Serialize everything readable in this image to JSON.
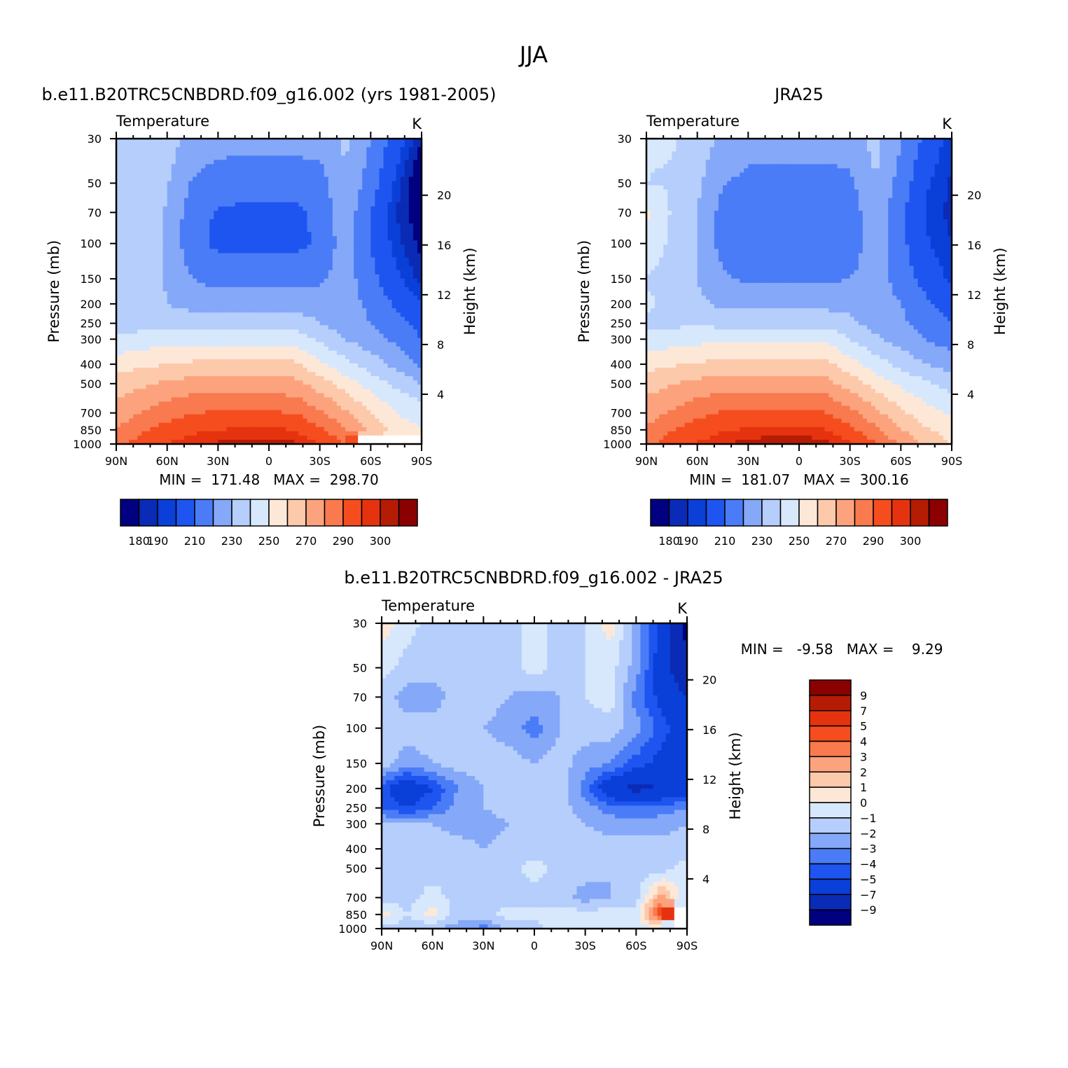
{
  "figure": {
    "title": "JJA",
    "colors": {
      "abs_levels": [
        "#000080",
        "#0a2bb5",
        "#0a3fd8",
        "#1e55f0",
        "#4a7cf7",
        "#85a8f8",
        "#b6cefb",
        "#d7e8fd",
        "#fde8d8",
        "#fdc9ab",
        "#fca37e",
        "#f87a4e",
        "#f54d1e",
        "#e6330f",
        "#b51c04",
        "#8b0000"
      ],
      "diff_levels": [
        "#000080",
        "#0a2bb5",
        "#0a3fd8",
        "#1e55f0",
        "#4a7cf7",
        "#85a8f8",
        "#b6cefb",
        "#d7e8fd",
        "#fde8d8",
        "#fdc9ab",
        "#fca37e",
        "#f87a4e",
        "#f54d1e",
        "#e6330f",
        "#b51c04",
        "#8b0000"
      ],
      "missing": "#ffffff"
    }
  },
  "chart_data": [
    {
      "type": "heatmap",
      "title": "b.e11.B20TRC5CNBDRD.f09_g16.002 (yrs 1981-2005)",
      "subtitle_left": "Temperature",
      "units": "K",
      "ylabel": "Pressure (mb)",
      "ylabel_right": "Height (km)",
      "x_ticks": [
        "90N",
        "60N",
        "30N",
        "0",
        "30S",
        "60S",
        "90S"
      ],
      "y_ticks": [
        30,
        50,
        70,
        100,
        150,
        200,
        250,
        300,
        400,
        500,
        700,
        850,
        1000
      ],
      "y_right_ticks": [
        20,
        16,
        12,
        8,
        4
      ],
      "x_range": [
        90,
        -90
      ],
      "y_range": [
        30,
        1000
      ],
      "y_scale": "log",
      "stats_text": "MIN =  171.48   MAX =  298.70",
      "min": 171.48,
      "max": 298.7,
      "colorbar": {
        "orientation": "horizontal",
        "labels": [
          "180",
          "190",
          "210",
          "230",
          "250",
          "270",
          "290",
          "300"
        ],
        "levels": [
          180,
          185,
          190,
          200,
          210,
          220,
          230,
          240,
          250,
          260,
          270,
          280,
          290,
          295,
          300
        ]
      },
      "field": {
        "lats": [
          90,
          75,
          60,
          45,
          30,
          15,
          0,
          -15,
          -30,
          -45,
          -60,
          -75,
          -90
        ],
        "levels_mb": [
          30,
          50,
          70,
          100,
          150,
          200,
          250,
          300,
          400,
          500,
          700,
          850,
          1000
        ],
        "values": [
          [
            230,
            230,
            225,
            216,
            214,
            214,
            214,
            214,
            214,
            222,
            210,
            195,
            180
          ],
          [
            229,
            228,
            221,
            209,
            205,
            204,
            204,
            204,
            206,
            219,
            205,
            188,
            172
          ],
          [
            228,
            227,
            219,
            204,
            199,
            198,
            198,
            198,
            202,
            217,
            200,
            185,
            175
          ],
          [
            228,
            226,
            218,
            203,
            198,
            198,
            198,
            198,
            201,
            216,
            200,
            187,
            178
          ],
          [
            228,
            226,
            219,
            210,
            206,
            206,
            206,
            206,
            208,
            215,
            203,
            192,
            183
          ],
          [
            227,
            225,
            220,
            216,
            216,
            216,
            216,
            216,
            216,
            214,
            208,
            198,
            190
          ],
          [
            226,
            226,
            226,
            226,
            225,
            225,
            225,
            225,
            220,
            214,
            210,
            204,
            196
          ],
          [
            232,
            234,
            236,
            236,
            236,
            236,
            236,
            236,
            228,
            220,
            214,
            208,
            200
          ],
          [
            245,
            248,
            250,
            252,
            252,
            252,
            252,
            252,
            242,
            233,
            225,
            217,
            208
          ],
          [
            255,
            258,
            262,
            264,
            264,
            264,
            264,
            263,
            255,
            245,
            236,
            228,
            220
          ],
          [
            265,
            270,
            276,
            280,
            281,
            281,
            281,
            280,
            272,
            262,
            250,
            240,
            236
          ],
          [
            270,
            278,
            284,
            288,
            290,
            291,
            291,
            290,
            282,
            270,
            258,
            245,
            240
          ],
          [
            276,
            285,
            290,
            294,
            296,
            297,
            298,
            296,
            290,
            280,
            null,
            null,
            null
          ]
        ]
      }
    },
    {
      "type": "heatmap",
      "title": "JRA25",
      "subtitle_left": "Temperature",
      "units": "K",
      "ylabel": "Pressure (mb)",
      "ylabel_right": "Height (km)",
      "x_ticks": [
        "90N",
        "60N",
        "30N",
        "0",
        "30S",
        "60S",
        "90S"
      ],
      "y_ticks": [
        30,
        50,
        70,
        100,
        150,
        200,
        250,
        300,
        400,
        500,
        700,
        850,
        1000
      ],
      "y_right_ticks": [
        20,
        16,
        12,
        8,
        4
      ],
      "x_range": [
        90,
        -90
      ],
      "y_range": [
        30,
        1000
      ],
      "y_scale": "log",
      "stats_text": "MIN =  181.07   MAX =  300.16",
      "min": 181.07,
      "max": 300.16,
      "colorbar": {
        "orientation": "horizontal",
        "labels": [
          "180",
          "190",
          "210",
          "230",
          "250",
          "270",
          "290",
          "300"
        ],
        "levels": [
          180,
          185,
          190,
          200,
          210,
          220,
          230,
          240,
          250,
          260,
          270,
          280,
          290,
          295,
          300
        ]
      },
      "field": {
        "lats": [
          90,
          75,
          60,
          45,
          30,
          15,
          0,
          -15,
          -30,
          -45,
          -60,
          -75,
          -90
        ],
        "levels_mb": [
          30,
          50,
          70,
          100,
          150,
          200,
          250,
          300,
          400,
          500,
          700,
          850,
          1000
        ],
        "values": [
          [
            231,
            231,
            226,
            217,
            215,
            215,
            215,
            215,
            215,
            223,
            211,
            197,
            186
          ],
          [
            230,
            229,
            222,
            211,
            207,
            206,
            206,
            206,
            208,
            220,
            206,
            191,
            184
          ],
          [
            242,
            229,
            220,
            206,
            202,
            201,
            201,
            201,
            204,
            218,
            202,
            189,
            183
          ],
          [
            236,
            228,
            220,
            206,
            201,
            201,
            201,
            201,
            203,
            217,
            203,
            191,
            185
          ],
          [
            229,
            227,
            220,
            212,
            208,
            208,
            208,
            208,
            210,
            216,
            205,
            196,
            188
          ],
          [
            232,
            227,
            222,
            218,
            217,
            217,
            217,
            217,
            217,
            216,
            210,
            202,
            194
          ],
          [
            228,
            228,
            228,
            227,
            227,
            227,
            227,
            227,
            222,
            216,
            212,
            206,
            200
          ],
          [
            233,
            235,
            237,
            238,
            238,
            238,
            238,
            238,
            230,
            222,
            216,
            210,
            205
          ],
          [
            246,
            249,
            251,
            253,
            253,
            253,
            253,
            253,
            244,
            235,
            227,
            220,
            215
          ],
          [
            256,
            259,
            263,
            265,
            265,
            265,
            265,
            264,
            256,
            246,
            238,
            232,
            226
          ],
          [
            266,
            271,
            277,
            281,
            282,
            282,
            282,
            281,
            273,
            263,
            252,
            244,
            238
          ],
          [
            271,
            279,
            285,
            289,
            291,
            292,
            292,
            291,
            283,
            272,
            261,
            251,
            246
          ],
          [
            277,
            286,
            291,
            295,
            297,
            299,
            299,
            297,
            291,
            281,
            268,
            256,
            250
          ]
        ]
      }
    },
    {
      "type": "heatmap",
      "title": "b.e11.B20TRC5CNBDRD.f09_g16.002 - JRA25",
      "subtitle_left": "Temperature",
      "units": "K",
      "ylabel": "Pressure (mb)",
      "ylabel_right": "Height (km)",
      "x_ticks": [
        "90N",
        "60N",
        "30N",
        "0",
        "30S",
        "60S",
        "90S"
      ],
      "y_ticks": [
        30,
        50,
        70,
        100,
        150,
        200,
        250,
        300,
        400,
        500,
        700,
        850,
        1000
      ],
      "y_right_ticks": [
        20,
        16,
        12,
        8,
        4
      ],
      "x_range": [
        90,
        -90
      ],
      "y_range": [
        30,
        1000
      ],
      "y_scale": "log",
      "stats_text": "MIN =   -9.58   MAX =    9.29",
      "min": -9.58,
      "max": 9.29,
      "colorbar": {
        "orientation": "vertical",
        "labels": [
          "9",
          "7",
          "5",
          "4",
          "3",
          "2",
          "1",
          "0",
          "-1",
          "-2",
          "-3",
          "-4",
          "-5",
          "-7",
          "-9"
        ],
        "levels": [
          -9,
          -7,
          -5,
          -4,
          -3,
          -2,
          -1,
          0,
          1,
          2,
          3,
          4,
          5,
          7,
          9
        ]
      },
      "field": {
        "lats": [
          90,
          75,
          60,
          45,
          30,
          15,
          0,
          -15,
          -30,
          -45,
          -60,
          -75,
          -90
        ],
        "levels_mb": [
          30,
          50,
          70,
          100,
          150,
          200,
          250,
          300,
          400,
          500,
          700,
          850,
          1000
        ],
        "values": [
          [
            0.5,
            -0.5,
            -1.5,
            -1.5,
            -1.5,
            -1.5,
            -0.5,
            -1.5,
            -1.0,
            0.5,
            -2.5,
            -5.5,
            -9.5
          ],
          [
            -0.5,
            -1.5,
            -1.5,
            -1.5,
            -1.5,
            -1.5,
            -0.5,
            -1.5,
            -1.0,
            -0.5,
            -2.5,
            -6.0,
            -9.0
          ],
          [
            -1.5,
            -2.5,
            -2.5,
            -1.5,
            -1.5,
            -2.0,
            -2.5,
            -2.0,
            -1.0,
            -0.5,
            -3.5,
            -5.5,
            -7.0
          ],
          [
            -1.5,
            -1.5,
            -1.5,
            -1.5,
            -2.0,
            -2.5,
            -3.5,
            -2.0,
            -1.5,
            -1.5,
            -2.5,
            -4.5,
            -6.0
          ],
          [
            -1.5,
            -2.5,
            -2.0,
            -1.5,
            -1.5,
            -1.5,
            -2.0,
            -1.5,
            -2.5,
            -3.0,
            -4.5,
            -5.5,
            -6.5
          ],
          [
            -4.5,
            -6.5,
            -5.0,
            -3.0,
            -2.0,
            -1.5,
            -1.5,
            -1.5,
            -3.5,
            -6.5,
            -7.5,
            -7.0,
            -6.0
          ],
          [
            -4.0,
            -5.0,
            -4.0,
            -2.5,
            -2.0,
            -1.5,
            -1.5,
            -1.5,
            -2.5,
            -3.5,
            -4.0,
            -3.5,
            -3.0
          ],
          [
            -2.0,
            -2.0,
            -2.0,
            -2.5,
            -2.5,
            -2.0,
            -1.5,
            -1.5,
            -2.0,
            -2.5,
            -2.5,
            -2.5,
            -2.0
          ],
          [
            -1.5,
            -1.5,
            -1.5,
            -1.5,
            -2.0,
            -1.5,
            -1.5,
            -1.5,
            -1.5,
            -1.5,
            -1.5,
            -1.5,
            -1.5
          ],
          [
            -1.5,
            -1.5,
            -1.5,
            -1.5,
            -1.5,
            -1.5,
            -0.5,
            -1.5,
            -1.5,
            -2.0,
            -1.5,
            -1.5,
            -0.5
          ],
          [
            -1.5,
            -1.5,
            -0.5,
            -1.5,
            -1.5,
            -1.5,
            -1.5,
            -1.5,
            -2.5,
            -2.0,
            -1.5,
            2.5,
            -1.0
          ],
          [
            0.5,
            -1.0,
            0.5,
            -1.5,
            -1.5,
            -0.5,
            -0.5,
            -0.5,
            -0.5,
            -0.5,
            -0.5,
            5.5,
            null
          ],
          [
            -1.5,
            -1.5,
            -2.0,
            -2.5,
            -3.5,
            -1.5,
            -1.5,
            -0.5,
            -0.5,
            -0.5,
            -0.5,
            -0.5,
            null
          ]
        ]
      }
    }
  ]
}
